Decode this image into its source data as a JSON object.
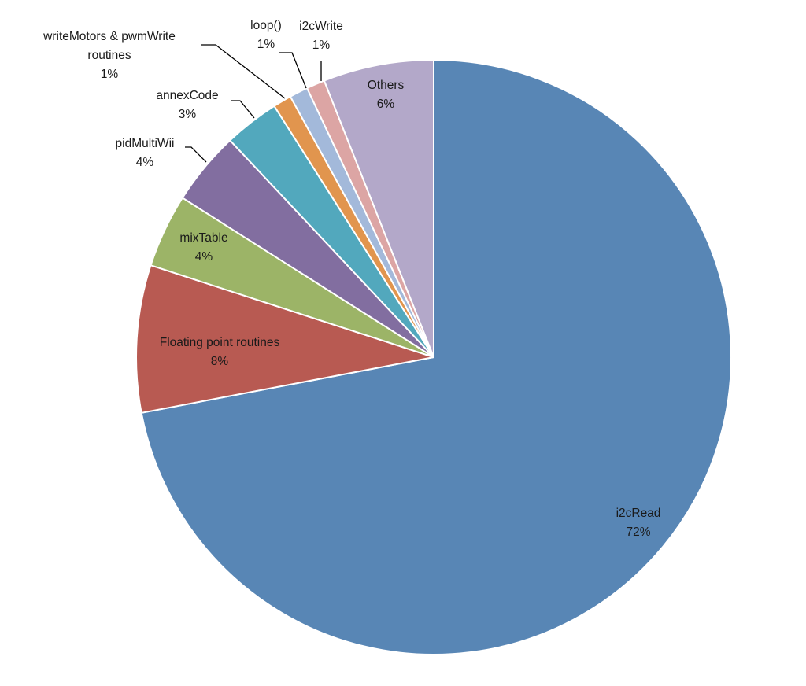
{
  "chart_data": {
    "type": "pie",
    "title": "",
    "slices": [
      {
        "label": "i2cRead",
        "percent_label": "72%",
        "value": 72,
        "color": "#5886b5"
      },
      {
        "label": "Floating point routines",
        "percent_label": "8%",
        "value": 8,
        "color": "#b85a52"
      },
      {
        "label": "mixTable",
        "percent_label": "4%",
        "value": 4,
        "color": "#9cb467"
      },
      {
        "label": "pidMultiWii",
        "percent_label": "4%",
        "value": 4,
        "color": "#826ea0"
      },
      {
        "label": "annexCode",
        "percent_label": "3%",
        "value": 3,
        "color": "#52a8bd"
      },
      {
        "label": "writeMotors & pwmWrite routines",
        "percent_label": "1%",
        "value": 1,
        "color": "#e1954e"
      },
      {
        "label": "loop()",
        "percent_label": "1%",
        "value": 1,
        "color": "#a3b9da"
      },
      {
        "label": "i2cWrite",
        "percent_label": "1%",
        "value": 1,
        "color": "#dca5a4"
      },
      {
        "label": "Others",
        "percent_label": "6%",
        "value": 6,
        "color": "#b3a8c9"
      }
    ]
  }
}
